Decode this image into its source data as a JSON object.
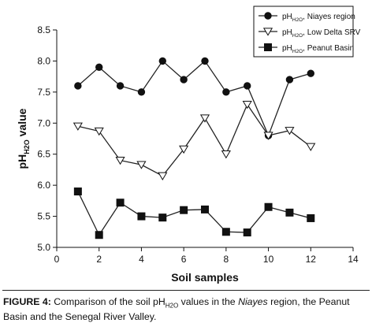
{
  "chart_data": {
    "type": "line",
    "title": "",
    "xlabel": "Soil samples",
    "ylabel": "pH",
    "ylabel_sub": "H2O",
    "ylabel_suffix": " value",
    "xlim": [
      0,
      14
    ],
    "ylim": [
      5.0,
      8.5
    ],
    "x_ticks": [
      0,
      2,
      4,
      6,
      8,
      10,
      12,
      14
    ],
    "y_ticks": [
      "5.0",
      "5.5",
      "6.0",
      "6.5",
      "7.0",
      "7.5",
      "8.0",
      "8.5"
    ],
    "grid": false,
    "legend_position": "top-right",
    "x": [
      1,
      2,
      3,
      4,
      5,
      6,
      7,
      8,
      9,
      10,
      11,
      12
    ],
    "series": [
      {
        "name": "pH",
        "name_sub": "H2O",
        "name_suffix": ", Niayes region",
        "marker": "circle",
        "values": [
          7.6,
          7.9,
          7.6,
          7.5,
          8.0,
          7.7,
          8.0,
          7.5,
          7.6,
          6.8,
          7.7,
          7.8
        ]
      },
      {
        "name": "pH",
        "name_sub": "H2O",
        "name_suffix": ", Low Delta SRV",
        "marker": "triangle-down-open",
        "values": [
          6.95,
          6.87,
          6.4,
          6.33,
          6.15,
          6.58,
          7.08,
          6.5,
          7.3,
          6.8,
          6.88,
          6.62
        ]
      },
      {
        "name": "pH",
        "name_sub": "H2O",
        "name_suffix": ", Peanut Basin",
        "marker": "square",
        "values": [
          5.9,
          5.2,
          5.72,
          5.5,
          5.48,
          5.6,
          5.61,
          5.25,
          5.24,
          5.65,
          5.56,
          5.47
        ]
      }
    ]
  },
  "caption": {
    "label": "FIGURE 4:",
    "text_before": " Comparison of the soil pH",
    "sub": "H2O",
    "text_mid": " values in the ",
    "italic": "Niayes",
    "text_after": " region, the Peanut Basin and the Senegal River Valley."
  },
  "colors": {
    "ink": "#111111",
    "line": "#222222"
  }
}
